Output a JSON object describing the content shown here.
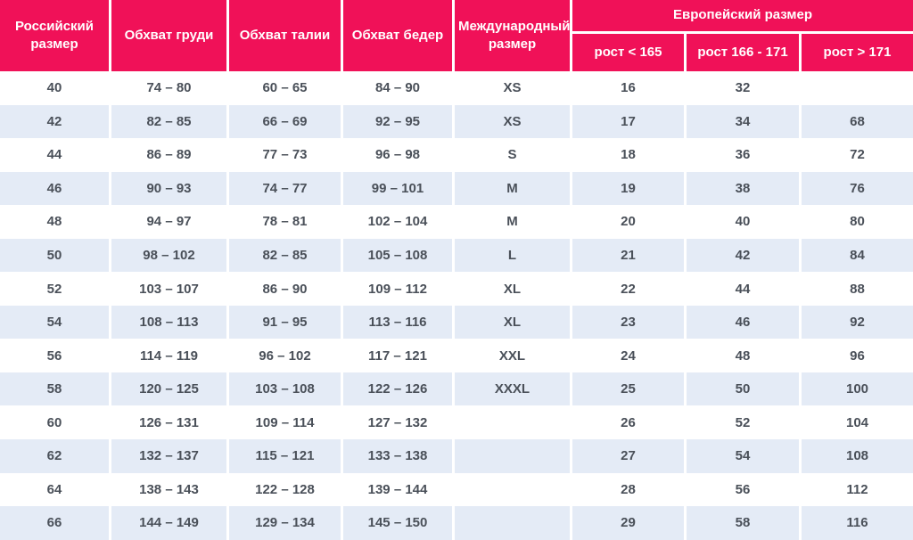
{
  "colors": {
    "header_bg": "#F01158",
    "header_text": "#FFFFFF",
    "row_bg": "#FFFFFF",
    "row_alt_bg": "#E4EBF6",
    "body_text": "#4A5059",
    "divider": "#FFFFFF"
  },
  "table": {
    "header": {
      "russian_size": "Российский размер",
      "chest": "Обхват груди",
      "waist": "Обхват талии",
      "hips": "Обхват бедер",
      "international_size": "Международный размер",
      "european_size": "Европейский размер",
      "height_lt_165": "рост < 165",
      "height_166_171": "рост 166 - 171",
      "height_gt_171": "рост > 171"
    }
  },
  "chart_data": {
    "type": "table",
    "title": "",
    "columns": [
      "Российский размер",
      "Обхват груди",
      "Обхват талии",
      "Обхват бедер",
      "Международный размер",
      "Европейский размер: рост < 165",
      "Европейский размер: рост 166 - 171",
      "Европейский размер: рост > 171"
    ],
    "rows": [
      [
        "40",
        "74 – 80",
        "60 – 65",
        "84 – 90",
        "XS",
        "16",
        "32",
        ""
      ],
      [
        "42",
        "82 – 85",
        "66 – 69",
        "92 – 95",
        "XS",
        "17",
        "34",
        "68"
      ],
      [
        "44",
        "86 – 89",
        "77 – 73",
        "96 – 98",
        "S",
        "18",
        "36",
        "72"
      ],
      [
        "46",
        "90 – 93",
        "74 – 77",
        "99 – 101",
        "M",
        "19",
        "38",
        "76"
      ],
      [
        "48",
        "94 – 97",
        "78 – 81",
        "102 – 104",
        "M",
        "20",
        "40",
        "80"
      ],
      [
        "50",
        "98 – 102",
        "82 – 85",
        "105 – 108",
        "L",
        "21",
        "42",
        "84"
      ],
      [
        "52",
        "103 – 107",
        "86 – 90",
        "109 – 112",
        "XL",
        "22",
        "44",
        "88"
      ],
      [
        "54",
        "108 – 113",
        "91 – 95",
        "113 – 116",
        "XL",
        "23",
        "46",
        "92"
      ],
      [
        "56",
        "114 – 119",
        "96 – 102",
        "117 – 121",
        "XXL",
        "24",
        "48",
        "96"
      ],
      [
        "58",
        "120 – 125",
        "103 – 108",
        "122 – 126",
        "XXXL",
        "25",
        "50",
        "100"
      ],
      [
        "60",
        "126 – 131",
        "109 – 114",
        "127 – 132",
        "",
        "26",
        "52",
        "104"
      ],
      [
        "62",
        "132 – 137",
        "115 – 121",
        "133 – 138",
        "",
        "27",
        "54",
        "108"
      ],
      [
        "64",
        "138 – 143",
        "122 – 128",
        "139 – 144",
        "",
        "28",
        "56",
        "112"
      ],
      [
        "66",
        "144 – 149",
        "129 – 134",
        "145 – 150",
        "",
        "29",
        "58",
        "116"
      ]
    ]
  }
}
